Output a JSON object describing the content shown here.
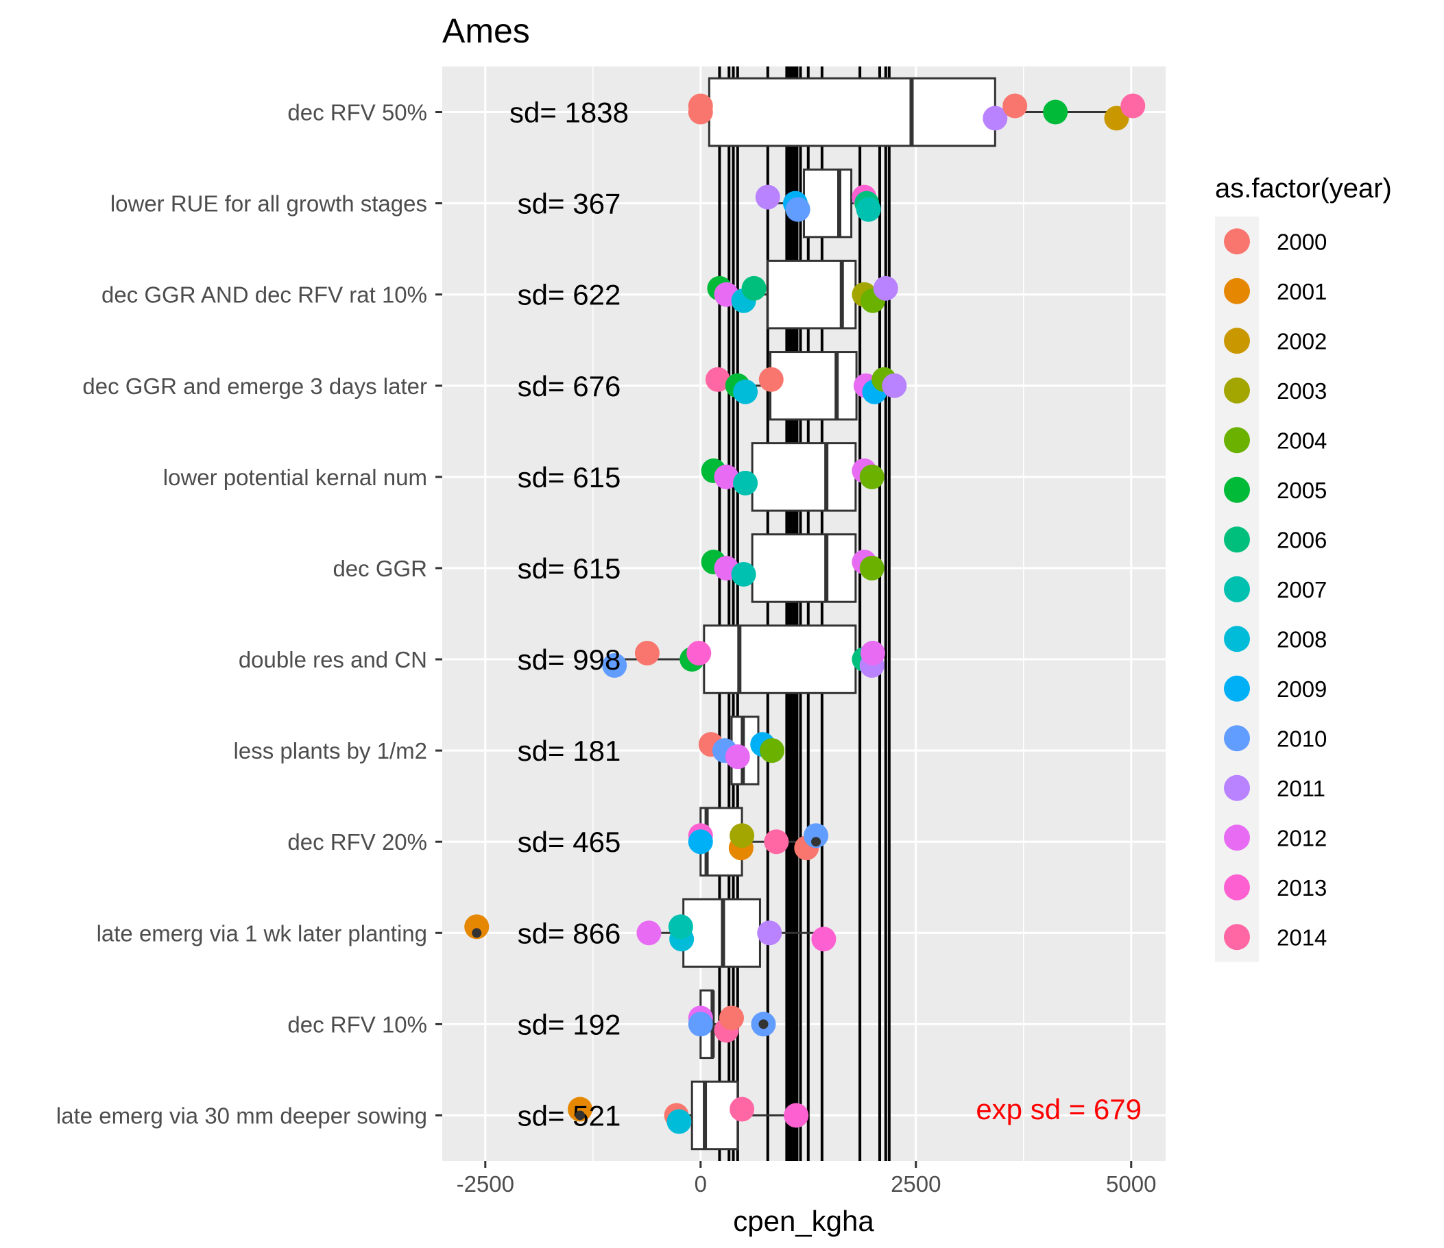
{
  "chart_data": {
    "type": "box",
    "title": "Ames",
    "xlabel": "cpen_kgha",
    "ylabel": "",
    "xlim": [
      -3000,
      5400
    ],
    "xticks": [
      -2500,
      0,
      2500,
      5000
    ],
    "xtick_labels": [
      "-2500",
      "0",
      "2500",
      "5000"
    ],
    "grid": true,
    "legend": {
      "title": "as.factor(year)",
      "position": "right",
      "entries": [
        {
          "label": "2000",
          "color": "#F8766D"
        },
        {
          "label": "2001",
          "color": "#E58700"
        },
        {
          "label": "2002",
          "color": "#C99800"
        },
        {
          "label": "2003",
          "color": "#A3A500"
        },
        {
          "label": "2004",
          "color": "#6BB100"
        },
        {
          "label": "2005",
          "color": "#00BA38"
        },
        {
          "label": "2006",
          "color": "#00BF7D"
        },
        {
          "label": "2007",
          "color": "#00C0AF"
        },
        {
          "label": "2008",
          "color": "#00BCD8"
        },
        {
          "label": "2009",
          "color": "#00B0F6"
        },
        {
          "label": "2010",
          "color": "#619CFF"
        },
        {
          "label": "2011",
          "color": "#B983FF"
        },
        {
          "label": "2012",
          "color": "#E76BF3"
        },
        {
          "label": "2013",
          "color": "#FD61D1"
        },
        {
          "label": "2014",
          "color": "#FF67A4"
        }
      ]
    },
    "vertical_lines": [
      220,
      330,
      380,
      430,
      780,
      1000,
      1030,
      1060,
      1090,
      1120,
      1160,
      1250,
      1410,
      1850,
      2080,
      2150,
      2190
    ],
    "categories": [
      "dec RFV 50%",
      "lower RUE for all growth stages",
      "dec GGR AND dec RFV rat 10%",
      "dec GGR and emerge 3 days later",
      "lower potential kernal num",
      "dec GGR",
      "double res and CN",
      "less plants by 1/m2",
      "dec RFV 20%",
      "late emerg via 1 wk later planting",
      "dec RFV 10%",
      "late emerg via 30 mm deeper sowing"
    ],
    "sd_labels": [
      "sd= 1838",
      "sd= 367",
      "sd= 622",
      "sd= 676",
      "sd= 615",
      "sd= 615",
      "sd= 998",
      "sd= 181",
      "sd= 465",
      "sd= 866",
      "sd= 192",
      "sd= 521"
    ],
    "annotation": "exp sd =  679",
    "boxes": [
      {
        "lo": 0,
        "q1": 100,
        "median": 2450,
        "q3": 3420,
        "hi": 5000,
        "outliers": []
      },
      {
        "lo": 780,
        "q1": 1200,
        "median": 1610,
        "q3": 1750,
        "hi": 1900,
        "outliers": []
      },
      {
        "lo": 270,
        "q1": 780,
        "median": 1640,
        "q3": 1800,
        "hi": 2150,
        "outliers": []
      },
      {
        "lo": 200,
        "q1": 810,
        "median": 1580,
        "q3": 1810,
        "hi": 2100,
        "outliers": []
      },
      {
        "lo": 200,
        "q1": 600,
        "median": 1460,
        "q3": 1800,
        "hi": 1900,
        "outliers": []
      },
      {
        "lo": 200,
        "q1": 600,
        "median": 1460,
        "q3": 1800,
        "hi": 1900,
        "outliers": []
      },
      {
        "lo": -900,
        "q1": 40,
        "median": 450,
        "q3": 1800,
        "hi": 1900,
        "outliers": []
      },
      {
        "lo": 250,
        "q1": 360,
        "median": 490,
        "q3": 670,
        "hi": 800,
        "outliers": []
      },
      {
        "lo": 0,
        "q1": 0,
        "median": 70,
        "q3": 480,
        "hi": 1150,
        "outliers": [
          1340
        ]
      },
      {
        "lo": -550,
        "q1": -200,
        "median": 260,
        "q3": 690,
        "hi": 1400,
        "outliers": [
          -2600
        ]
      },
      {
        "lo": 0,
        "q1": 0,
        "median": 140,
        "q3": 140,
        "hi": 350,
        "outliers": [
          730
        ]
      },
      {
        "lo": -280,
        "q1": -100,
        "median": 50,
        "q3": 430,
        "hi": 1100,
        "outliers": [
          -1400
        ]
      }
    ],
    "points": [
      [
        [
          0,
          0
        ],
        [
          0,
          0
        ],
        [
          3420,
          11
        ],
        [
          3650,
          0
        ],
        [
          4120,
          5
        ],
        [
          4830,
          2
        ],
        [
          5020,
          14
        ]
      ],
      [
        [
          780,
          11
        ],
        [
          1100,
          9
        ],
        [
          1130,
          10
        ],
        [
          1900,
          13
        ],
        [
          1930,
          6
        ],
        [
          1950,
          7
        ]
      ],
      [
        [
          220,
          5
        ],
        [
          300,
          12
        ],
        [
          500,
          8
        ],
        [
          620,
          6
        ],
        [
          1900,
          3
        ],
        [
          2000,
          4
        ],
        [
          2150,
          11
        ]
      ],
      [
        [
          200,
          14
        ],
        [
          430,
          5
        ],
        [
          520,
          8
        ],
        [
          820,
          0
        ],
        [
          1920,
          12
        ],
        [
          2020,
          9
        ],
        [
          2130,
          4
        ],
        [
          2250,
          11
        ]
      ],
      [
        [
          150,
          5
        ],
        [
          300,
          12
        ],
        [
          520,
          7
        ],
        [
          1900,
          12
        ],
        [
          1990,
          4
        ]
      ],
      [
        [
          150,
          5
        ],
        [
          300,
          12
        ],
        [
          500,
          7
        ],
        [
          1900,
          12
        ],
        [
          1990,
          4
        ]
      ],
      [
        [
          -620,
          0
        ],
        [
          -100,
          5
        ],
        [
          -1000,
          10
        ],
        [
          -20,
          13
        ],
        [
          1900,
          6
        ],
        [
          1990,
          11
        ],
        [
          2000,
          12
        ]
      ],
      [
        [
          120,
          0
        ],
        [
          280,
          10
        ],
        [
          430,
          12
        ],
        [
          720,
          9
        ],
        [
          830,
          4
        ]
      ],
      [
        [
          0,
          13
        ],
        [
          0,
          9
        ],
        [
          470,
          1
        ],
        [
          480,
          3
        ],
        [
          880,
          14
        ],
        [
          1230,
          0
        ],
        [
          1340,
          10
        ]
      ],
      [
        [
          -2600,
          1
        ],
        [
          -600,
          12
        ],
        [
          -220,
          8
        ],
        [
          -230,
          7
        ],
        [
          800,
          11
        ],
        [
          1430,
          13
        ]
      ],
      [
        [
          0,
          12
        ],
        [
          0,
          10
        ],
        [
          300,
          14
        ],
        [
          360,
          0
        ],
        [
          730,
          10
        ]
      ],
      [
        [
          -1400,
          1
        ],
        [
          -280,
          0
        ],
        [
          -250,
          8
        ],
        [
          480,
          14
        ],
        [
          1110,
          13
        ]
      ]
    ]
  }
}
